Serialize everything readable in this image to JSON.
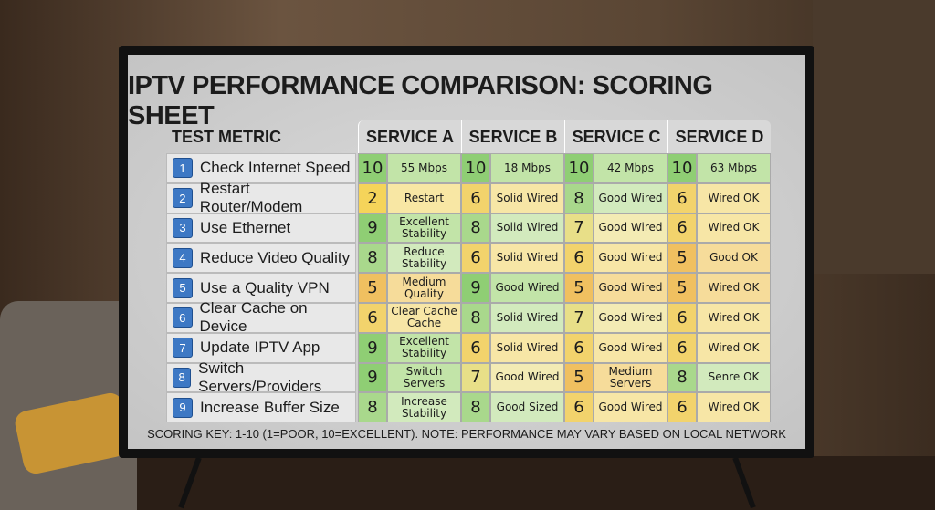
{
  "title": "IPTV PERFORMANCE COMPARISON: SCORING SHEET",
  "table": {
    "header": [
      "TEST METRIC",
      "SERVICE A",
      "SERVICE B",
      "SERVICE C",
      "SERVICE D"
    ],
    "rows": [
      {
        "number": 1,
        "metric": "Check Internet Speed",
        "cells": [
          {
            "score": 10,
            "note": "55 Mbps"
          },
          {
            "score": 10,
            "note": "18 Mbps"
          },
          {
            "score": 10,
            "note": "42 Mbps"
          },
          {
            "score": 10,
            "note": "63 Mbps"
          }
        ]
      },
      {
        "number": 2,
        "metric": "Restart Router/Modem",
        "cells": [
          {
            "score": 2,
            "note": "Restart"
          },
          {
            "score": 6,
            "note": "Solid Wired"
          },
          {
            "score": 8,
            "note": "Good Wired"
          },
          {
            "score": 6,
            "note": "Wired OK"
          }
        ]
      },
      {
        "number": 3,
        "metric": "Use Ethernet",
        "cells": [
          {
            "score": 9,
            "note": "Excellent Stability"
          },
          {
            "score": 8,
            "note": "Solid Wired"
          },
          {
            "score": 7,
            "note": "Good Wired"
          },
          {
            "score": 6,
            "note": "Wired OK"
          }
        ]
      },
      {
        "number": 4,
        "metric": "Reduce Video Quality",
        "cells": [
          {
            "score": 8,
            "note": "Reduce Stability"
          },
          {
            "score": 6,
            "note": "Solid Wired"
          },
          {
            "score": 6,
            "note": "Good Wired"
          },
          {
            "score": 5,
            "note": "Good OK"
          }
        ]
      },
      {
        "number": 5,
        "metric": "Use a Quality VPN",
        "cells": [
          {
            "score": 5,
            "note": "Medium Quality"
          },
          {
            "score": 9,
            "note": "Good Wired"
          },
          {
            "score": 5,
            "note": "Good Wired"
          },
          {
            "score": 5,
            "note": "Wired OK"
          }
        ]
      },
      {
        "number": 6,
        "metric": "Clear Cache on Device",
        "cells": [
          {
            "score": 6,
            "note": "Clear Cache Cache"
          },
          {
            "score": 8,
            "note": "Solid Wired"
          },
          {
            "score": 7,
            "note": "Good Wired"
          },
          {
            "score": 6,
            "note": "Wired OK"
          }
        ]
      },
      {
        "number": 7,
        "metric": "Update IPTV App",
        "cells": [
          {
            "score": 9,
            "note": "Excellent Stability"
          },
          {
            "score": 6,
            "note": "Solid Wired"
          },
          {
            "score": 6,
            "note": "Good Wired"
          },
          {
            "score": 6,
            "note": "Wired OK"
          }
        ]
      },
      {
        "number": 8,
        "metric": "Switch Servers/Providers",
        "cells": [
          {
            "score": 9,
            "note": "Switch Servers"
          },
          {
            "score": 7,
            "note": "Good Wired"
          },
          {
            "score": 5,
            "note": "Medium Servers"
          },
          {
            "score": 8,
            "note": "Senre OK"
          }
        ]
      },
      {
        "number": 9,
        "metric": "Increase Buffer Size",
        "cells": [
          {
            "score": 8,
            "note": "Increase Stability"
          },
          {
            "score": 8,
            "note": "Good Sized"
          },
          {
            "score": 6,
            "note": "Good Wired"
          },
          {
            "score": 6,
            "note": "Wired OK"
          }
        ]
      }
    ]
  },
  "footer": "SCORING KEY: 1-10 (1=POOR, 10=EXCELLENT). NOTE: PERFORMANCE MAY VARY BASED ON LOCAL NETWORK"
}
